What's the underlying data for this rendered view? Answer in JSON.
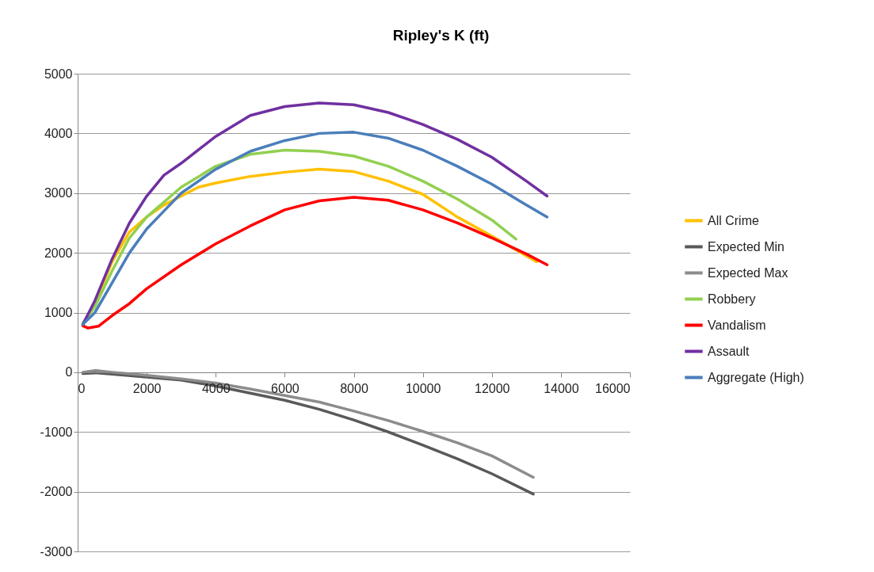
{
  "chart_data": {
    "type": "line",
    "title": "Ripley's K (ft)",
    "xlim": [
      0,
      16000
    ],
    "ylim": [
      -3000,
      5000
    ],
    "xticks": [
      0,
      2000,
      4000,
      6000,
      8000,
      10000,
      12000,
      14000,
      16000
    ],
    "yticks": [
      -3000,
      -2000,
      -1000,
      0,
      1000,
      2000,
      3000,
      4000,
      5000
    ],
    "grid": "y",
    "legend": "right",
    "series": [
      {
        "name": "All Crime",
        "color": "#ffc000",
        "x": [
          150,
          500,
          1000,
          1500,
          2000,
          2500,
          3000,
          3500,
          4000,
          5000,
          6000,
          7000,
          8000,
          9000,
          10000,
          11000,
          12000,
          13000,
          13300
        ],
        "values": [
          800,
          1150,
          1850,
          2350,
          2600,
          2800,
          2950,
          3100,
          3170,
          3280,
          3350,
          3400,
          3360,
          3200,
          2980,
          2600,
          2280,
          1950,
          1850
        ]
      },
      {
        "name": "Expected Min",
        "color": "#595959",
        "x": [
          150,
          500,
          1000,
          2000,
          3000,
          4000,
          5000,
          6000,
          7000,
          8000,
          9000,
          10000,
          11000,
          12000,
          13200
        ],
        "values": [
          -20,
          -10,
          -30,
          -80,
          -130,
          -230,
          -350,
          -470,
          -620,
          -800,
          -1000,
          -1220,
          -1450,
          -1700,
          -2040
        ]
      },
      {
        "name": "Expected Max",
        "color": "#8c8c8c",
        "x": [
          150,
          500,
          1000,
          2000,
          3000,
          4000,
          5000,
          6000,
          7000,
          8000,
          9000,
          10000,
          11000,
          12000,
          13200
        ],
        "values": [
          0,
          30,
          0,
          -50,
          -110,
          -180,
          -280,
          -390,
          -500,
          -650,
          -810,
          -990,
          -1180,
          -1400,
          -1760
        ]
      },
      {
        "name": "Robbery",
        "color": "#92d050",
        "x": [
          150,
          500,
          1000,
          1500,
          2000,
          2500,
          3000,
          4000,
          5000,
          6000,
          7000,
          8000,
          9000,
          10000,
          11000,
          12000,
          12700
        ],
        "values": [
          820,
          1100,
          1700,
          2250,
          2600,
          2850,
          3100,
          3450,
          3650,
          3720,
          3700,
          3620,
          3450,
          3200,
          2900,
          2550,
          2230
        ]
      },
      {
        "name": "Vandalism",
        "color": "#ff0000",
        "x": [
          150,
          300,
          600,
          1000,
          1500,
          2000,
          3000,
          4000,
          5000,
          6000,
          7000,
          8000,
          9000,
          10000,
          11000,
          12000,
          13000,
          13600
        ],
        "values": [
          780,
          740,
          770,
          950,
          1150,
          1400,
          1800,
          2150,
          2450,
          2720,
          2870,
          2930,
          2880,
          2720,
          2500,
          2250,
          1980,
          1800
        ]
      },
      {
        "name": "Assault",
        "color": "#7030a0",
        "x": [
          150,
          500,
          1000,
          1500,
          2000,
          2500,
          3000,
          4000,
          5000,
          6000,
          7000,
          8000,
          9000,
          10000,
          11000,
          12000,
          13000,
          13600
        ],
        "values": [
          800,
          1200,
          1900,
          2500,
          2950,
          3300,
          3500,
          3950,
          4300,
          4450,
          4510,
          4480,
          4350,
          4150,
          3900,
          3600,
          3200,
          2950
        ]
      },
      {
        "name": "Aggregate (High)",
        "color": "#4a7ebb",
        "x": [
          150,
          500,
          1000,
          1500,
          2000,
          2500,
          3000,
          4000,
          5000,
          6000,
          7000,
          8000,
          9000,
          10000,
          11000,
          12000,
          13000,
          13600
        ],
        "values": [
          800,
          1000,
          1500,
          2000,
          2400,
          2700,
          3000,
          3400,
          3700,
          3880,
          4000,
          4020,
          3920,
          3720,
          3450,
          3150,
          2800,
          2600
        ]
      }
    ]
  }
}
